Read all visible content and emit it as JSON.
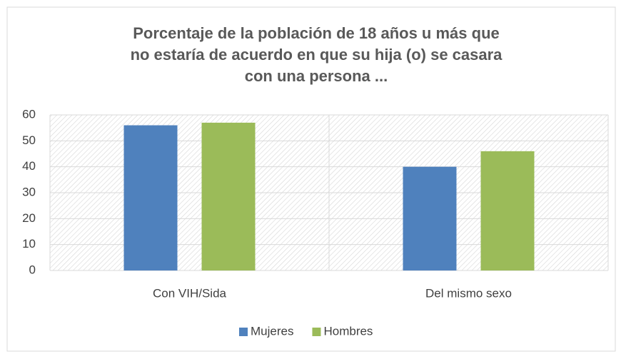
{
  "chart_data": {
    "type": "bar",
    "title": [
      "Porcentaje de la población de 18 años u más que",
      "no estaría de acuerdo en que su hija (o) se casara",
      "con una persona ..."
    ],
    "categories": [
      "Con VIH/Sida",
      "Del mismo sexo"
    ],
    "series": [
      {
        "name": "Mujeres",
        "color": "#4f81bd",
        "values": [
          56,
          40
        ]
      },
      {
        "name": "Hombres",
        "color": "#9bbb59",
        "values": [
          57,
          46
        ]
      }
    ],
    "ylim": [
      0,
      60
    ],
    "yticks": [
      0,
      10,
      20,
      30,
      40,
      50,
      60
    ],
    "grid": true,
    "legend": "bottom"
  }
}
